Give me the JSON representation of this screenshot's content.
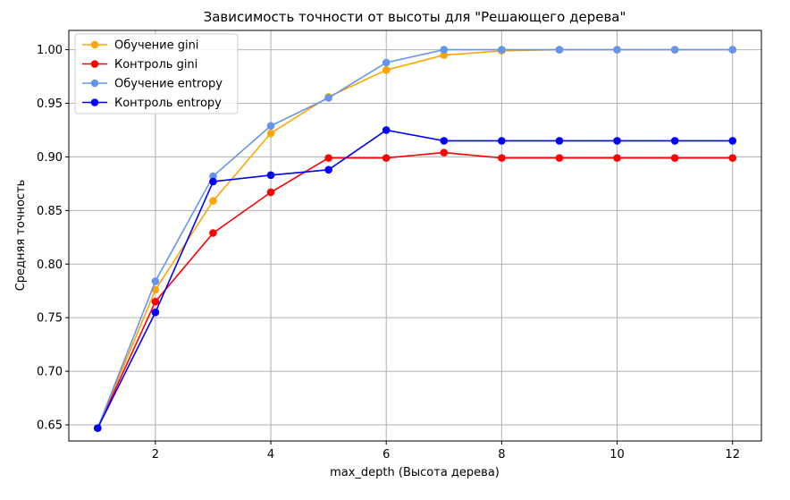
{
  "chart_data": {
    "type": "line",
    "title": "Зависимость точности от высоты для \"Решающего дерева\"",
    "xlabel": "max_depth (Высота дерева)",
    "ylabel": "Средняя точность",
    "x": [
      1,
      2,
      3,
      4,
      5,
      6,
      7,
      8,
      9,
      10,
      11,
      12
    ],
    "xlim": [
      0.5,
      12.5
    ],
    "ylim": [
      0.635,
      1.018
    ],
    "xticks": [
      2,
      4,
      6,
      8,
      10,
      12
    ],
    "yticks": [
      0.65,
      0.7,
      0.75,
      0.8,
      0.85,
      0.9,
      0.95,
      1.0
    ],
    "xtick_labels": [
      "2",
      "4",
      "6",
      "8",
      "10",
      "12"
    ],
    "ytick_labels": [
      "0.65",
      "0.70",
      "0.75",
      "0.80",
      "0.85",
      "0.90",
      "0.95",
      "1.00"
    ],
    "grid": true,
    "legend_position": "top-left",
    "series": [
      {
        "name": "Обучение gini",
        "color": "#ffa500",
        "values": [
          0.647,
          0.776,
          0.859,
          0.922,
          0.956,
          0.981,
          0.995,
          0.999,
          1.0,
          1.0,
          1.0,
          1.0
        ]
      },
      {
        "name": "Контроль gini",
        "color": "#ff0000",
        "values": [
          0.647,
          0.765,
          0.829,
          0.867,
          0.899,
          0.899,
          0.904,
          0.899,
          0.899,
          0.899,
          0.899,
          0.899
        ]
      },
      {
        "name": "Обучение entropy",
        "color": "#6495ed",
        "values": [
          0.647,
          0.784,
          0.882,
          0.929,
          0.955,
          0.988,
          1.0,
          1.0,
          1.0,
          1.0,
          1.0,
          1.0
        ]
      },
      {
        "name": "Контроль entropy",
        "color": "#0000ff",
        "values": [
          0.647,
          0.755,
          0.877,
          0.883,
          0.888,
          0.925,
          0.915,
          0.915,
          0.915,
          0.915,
          0.915,
          0.915
        ]
      }
    ]
  }
}
